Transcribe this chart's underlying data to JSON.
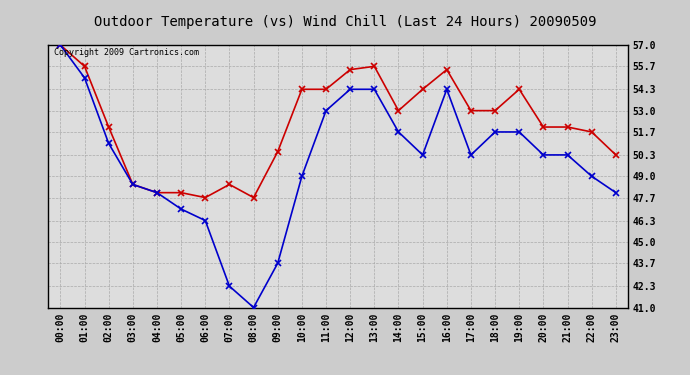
{
  "title": "Outdoor Temperature (vs) Wind Chill (Last 24 Hours) 20090509",
  "copyright": "Copyright 2009 Cartronics.com",
  "hours": [
    "00:00",
    "01:00",
    "02:00",
    "03:00",
    "04:00",
    "05:00",
    "06:00",
    "07:00",
    "08:00",
    "09:00",
    "10:00",
    "11:00",
    "12:00",
    "13:00",
    "14:00",
    "15:00",
    "16:00",
    "17:00",
    "18:00",
    "19:00",
    "20:00",
    "21:00",
    "22:00",
    "23:00"
  ],
  "outdoor_temp": [
    57.0,
    55.7,
    52.0,
    48.5,
    48.0,
    48.0,
    47.7,
    48.5,
    47.7,
    50.5,
    54.3,
    54.3,
    55.5,
    55.7,
    53.0,
    54.3,
    55.5,
    53.0,
    53.0,
    54.3,
    52.0,
    52.0,
    51.7,
    50.3
  ],
  "wind_chill": [
    57.0,
    55.0,
    51.0,
    48.5,
    48.0,
    47.0,
    46.3,
    42.3,
    41.0,
    43.7,
    49.0,
    53.0,
    54.3,
    54.3,
    51.7,
    50.3,
    54.3,
    50.3,
    51.7,
    51.7,
    50.3,
    50.3,
    49.0,
    48.0
  ],
  "temp_color": "#cc0000",
  "chill_color": "#0000cc",
  "bg_color": "#cccccc",
  "plot_bg": "#dddddd",
  "grid_color": "#aaaaaa",
  "yticks": [
    41.0,
    42.3,
    43.7,
    45.0,
    46.3,
    47.7,
    49.0,
    50.3,
    51.7,
    53.0,
    54.3,
    55.7,
    57.0
  ],
  "ylim": [
    41.0,
    57.0
  ],
  "title_fontsize": 10,
  "label_fontsize": 7,
  "copyright_fontsize": 6,
  "marker": "x",
  "linewidth": 1.2,
  "markersize": 4
}
